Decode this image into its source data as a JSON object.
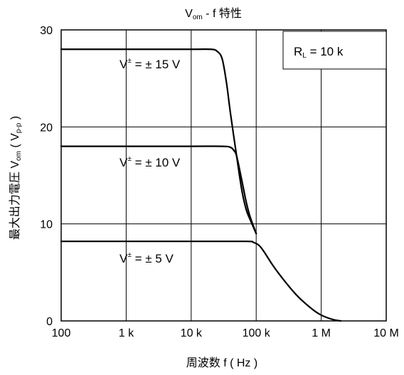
{
  "chart_data": {
    "type": "line",
    "title": {
      "main": "V",
      "sub": "om",
      "rest": " - f   特性"
    },
    "xlabel": "周波数   f ( Hz )",
    "ylabel": {
      "prefix": "最大出力電圧   V",
      "sub1": "om",
      "mid": " ( V",
      "sub2": "p-p",
      "suffix": " )"
    },
    "xscale": "log",
    "xlim": [
      100,
      10000000
    ],
    "ylim": [
      0,
      30
    ],
    "grid": true,
    "x_ticks": [
      {
        "value": 100,
        "label": "100"
      },
      {
        "value": 1000,
        "label": "1 k"
      },
      {
        "value": 10000,
        "label": "10 k"
      },
      {
        "value": 100000,
        "label": "100 k"
      },
      {
        "value": 1000000,
        "label": "1 M"
      },
      {
        "value": 10000000,
        "label": "10 M"
      }
    ],
    "y_ticks": [
      {
        "value": 0,
        "label": "0"
      },
      {
        "value": 10,
        "label": "10"
      },
      {
        "value": 20,
        "label": "20"
      },
      {
        "value": 30,
        "label": "30"
      }
    ],
    "legend_box": {
      "main": "R",
      "sub": "L",
      "rest": " = 10 k"
    },
    "series": [
      {
        "name": "V± = ±15 V",
        "label": {
          "a": "V",
          "sup": "±",
          "b": " = ± 15 V"
        },
        "x": [
          100,
          1000,
          10000,
          20000,
          25000,
          30000,
          35000,
          40000,
          50000,
          60000,
          70000,
          80000,
          100000
        ],
        "y": [
          28,
          28,
          28,
          28,
          27.8,
          27,
          24.5,
          21.5,
          17,
          13.5,
          11.5,
          10.5,
          9
        ]
      },
      {
        "name": "V± = ±10 V",
        "label": {
          "a": "V",
          "sup": "±",
          "b": " = ± 10 V"
        },
        "x": [
          100,
          1000,
          10000,
          30000,
          40000,
          45000,
          50000,
          60000,
          70000,
          80000,
          100000
        ],
        "y": [
          18,
          18,
          18,
          18,
          17.9,
          17.6,
          17,
          14.5,
          12.3,
          10.8,
          9
        ]
      },
      {
        "name": "V± = ±5 V",
        "label": {
          "a": "V",
          "sup": "±",
          "b": " = ± 5 V"
        },
        "x": [
          100,
          1000,
          10000,
          70000,
          90000,
          110000,
          130000,
          200000,
          400000,
          700000,
          1000000,
          1500000,
          2000000
        ],
        "y": [
          8.2,
          8.2,
          8.2,
          8.2,
          8.1,
          7.8,
          7.2,
          5.3,
          2.8,
          1.3,
          0.6,
          0.15,
          0
        ]
      }
    ]
  }
}
